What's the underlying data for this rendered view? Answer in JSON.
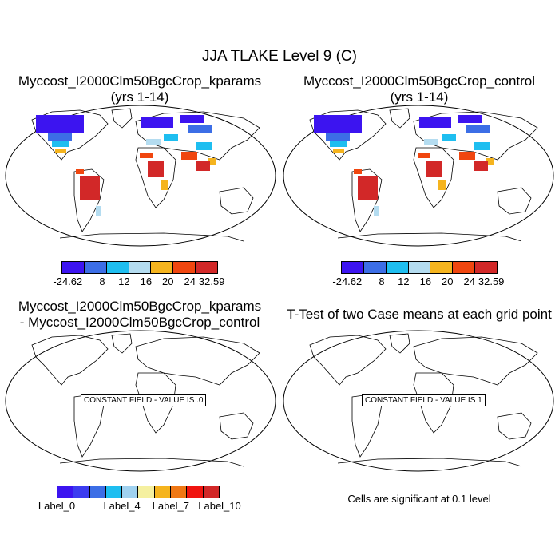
{
  "title": "JJA TLAKE Level 9 (C)",
  "panels": [
    {
      "id": "top-left",
      "title_line1": "Myccost_I2000Clm50BgcCrop_kparams",
      "title_line2": "(yrs 1-14)"
    },
    {
      "id": "top-right",
      "title_line1": "Myccost_I2000Clm50BgcCrop_control",
      "title_line2": "(yrs 1-14)"
    },
    {
      "id": "bottom-left",
      "title_line1": "Myccost_I2000Clm50BgcCrop_kparams",
      "title_line2": "- Myccost_I2000Clm50BgcCrop_control",
      "box_text": "CONSTANT FIELD - VALUE IS .0"
    },
    {
      "id": "bottom-right",
      "title_line1": "T-Test of two Case means at each grid point",
      "box_text": "CONSTANT FIELD - VALUE IS 1"
    }
  ],
  "colorbar_top": {
    "colors": [
      "#3c14f0",
      "#3c6ee6",
      "#1ebef0",
      "#b4dcf0",
      "#f5b41e",
      "#f0460f",
      "#d22828"
    ],
    "labels": [
      "-24.62",
      "8",
      "12",
      "16",
      "20",
      "24",
      "32.59"
    ]
  },
  "colorbar_bottom": {
    "colors": [
      "#3c14f0",
      "#3c3cf0",
      "#3c6ee6",
      "#1ebef0",
      "#a0d2f0",
      "#f5f0a0",
      "#f5b41e",
      "#f07814",
      "#f0140f",
      "#d22828"
    ],
    "labels": [
      "Label_0",
      "Label_4",
      "Label_7",
      "Label_10"
    ]
  },
  "note": "Cells are significant at 0.1 level"
}
